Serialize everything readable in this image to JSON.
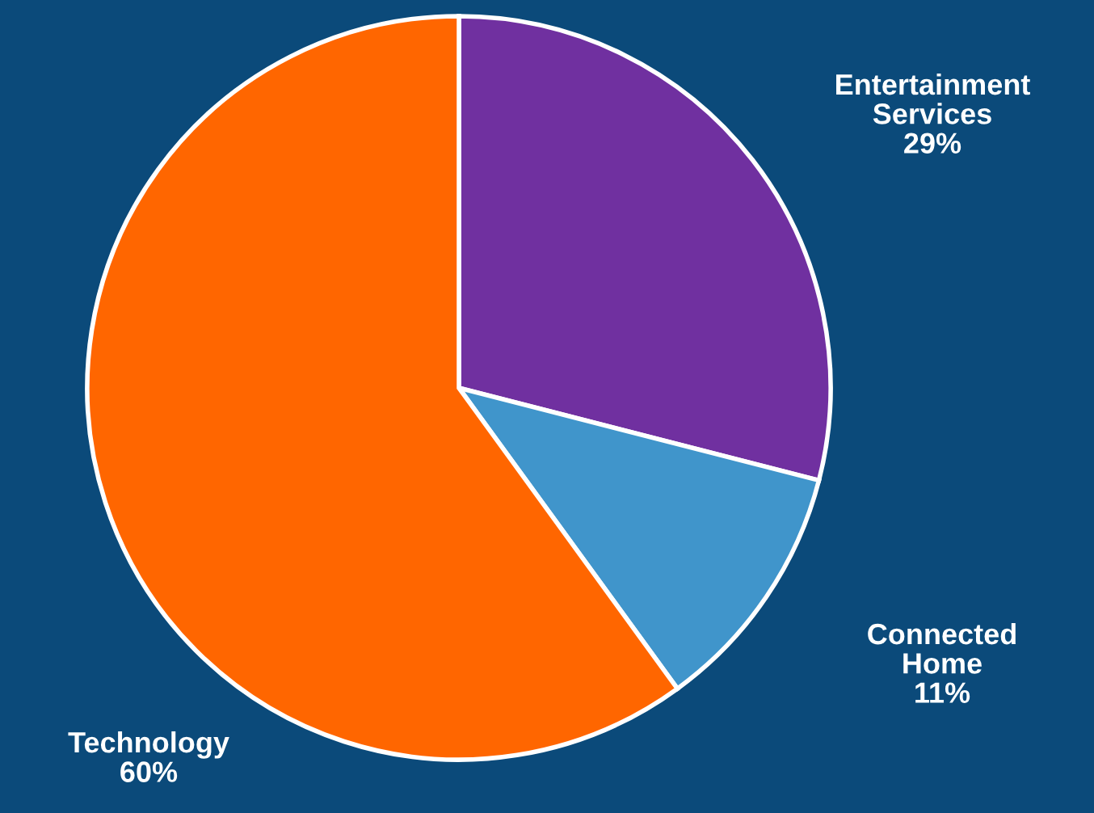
{
  "chart_data": {
    "type": "pie",
    "categories": [
      "Entertainment Services",
      "Connected Home",
      "Technology"
    ],
    "values": [
      29,
      11,
      60
    ],
    "colors": [
      "#7030a0",
      "#4095cb",
      "#ff6600"
    ],
    "value_labels": [
      "29%",
      "11%",
      "60%"
    ]
  }
}
